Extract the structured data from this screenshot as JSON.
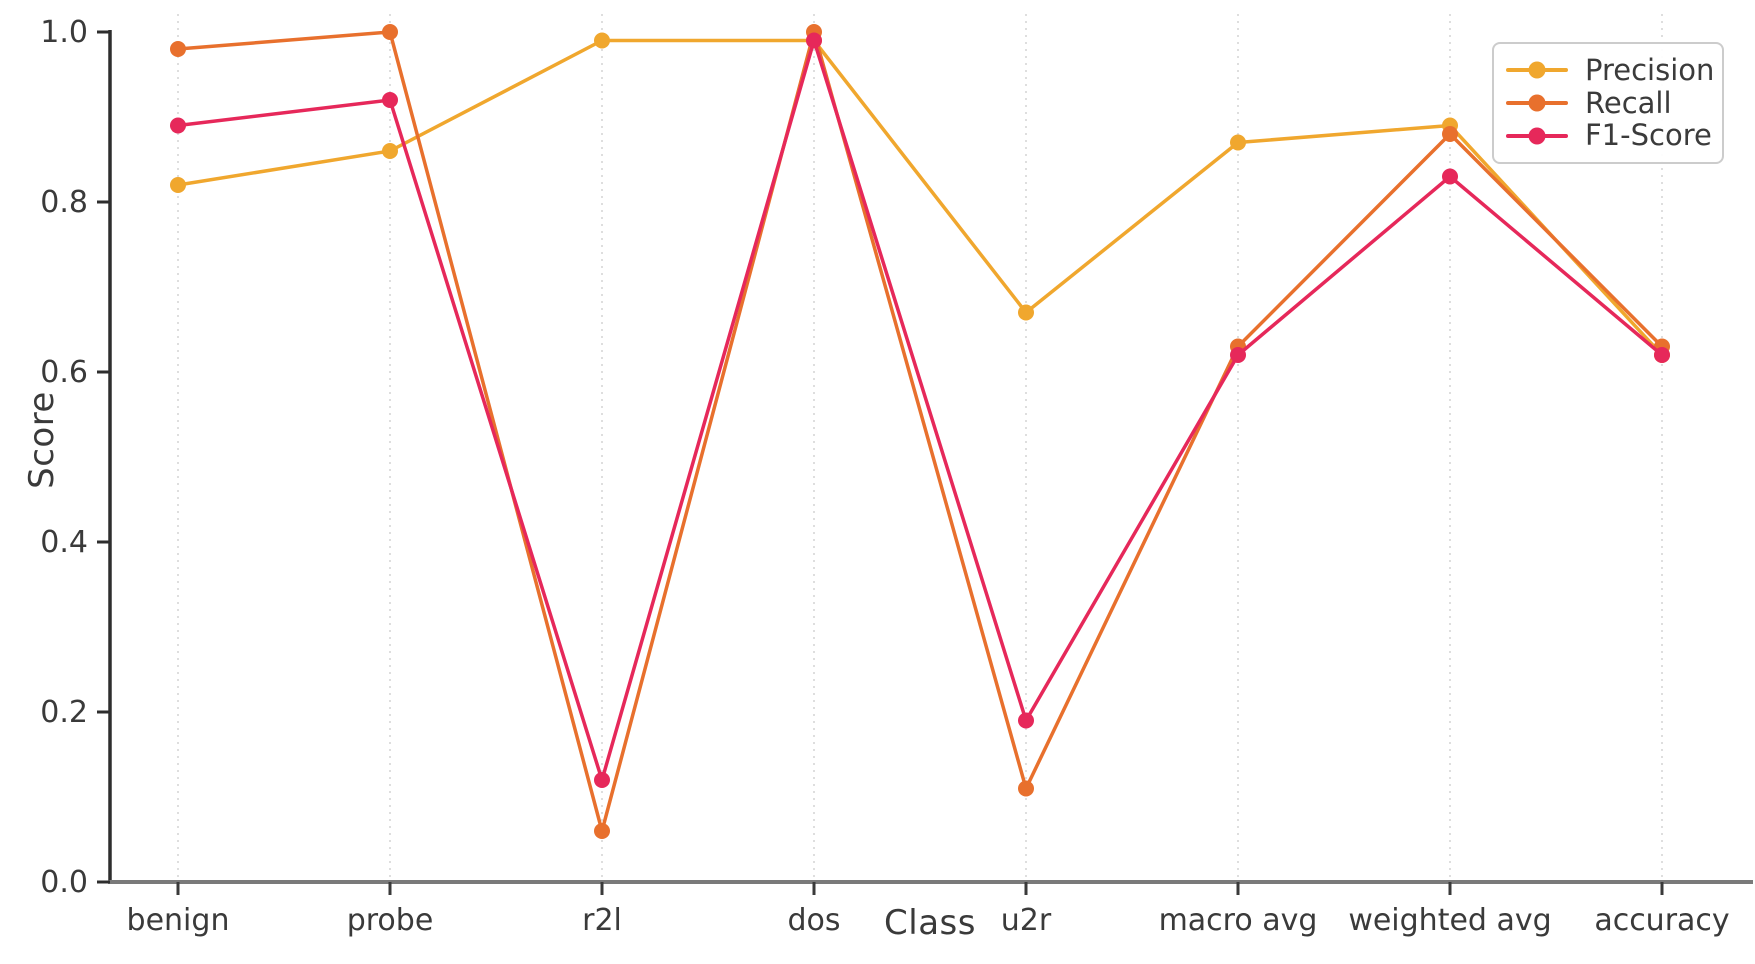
{
  "chart_data": {
    "type": "line",
    "title": "",
    "xlabel": "Class",
    "ylabel": "Score",
    "categories": [
      "benign",
      "probe",
      "r2l",
      "dos",
      "u2r",
      "macro avg",
      "weighted avg",
      "accuracy"
    ],
    "series": [
      {
        "name": "Precision",
        "color": "#F0A72E",
        "values": [
          0.82,
          0.86,
          0.99,
          0.99,
          0.67,
          0.87,
          0.89,
          0.62
        ]
      },
      {
        "name": "Recall",
        "color": "#E8702D",
        "values": [
          0.98,
          1.0,
          0.06,
          1.0,
          0.11,
          0.63,
          0.88,
          0.63
        ]
      },
      {
        "name": "F1-Score",
        "color": "#E6285A",
        "values": [
          0.89,
          0.92,
          0.12,
          0.99,
          0.19,
          0.62,
          0.83,
          0.62
        ]
      }
    ],
    "ylim": [
      0.0,
      1.0
    ],
    "yticks": [
      0.0,
      0.2,
      0.4,
      0.6,
      0.8,
      1.0
    ],
    "grid": "vertical-category-lines",
    "legend_position": "upper right",
    "marker": "circle"
  },
  "palette": {
    "grid_color": "#dedede",
    "left_spine_color": "#2e2e2e",
    "bottom_spine_color": "#7a7a7a",
    "tick_color": "#3a3a3a",
    "tick_label_color": "#3a3a3a",
    "background": "#ffffff"
  }
}
